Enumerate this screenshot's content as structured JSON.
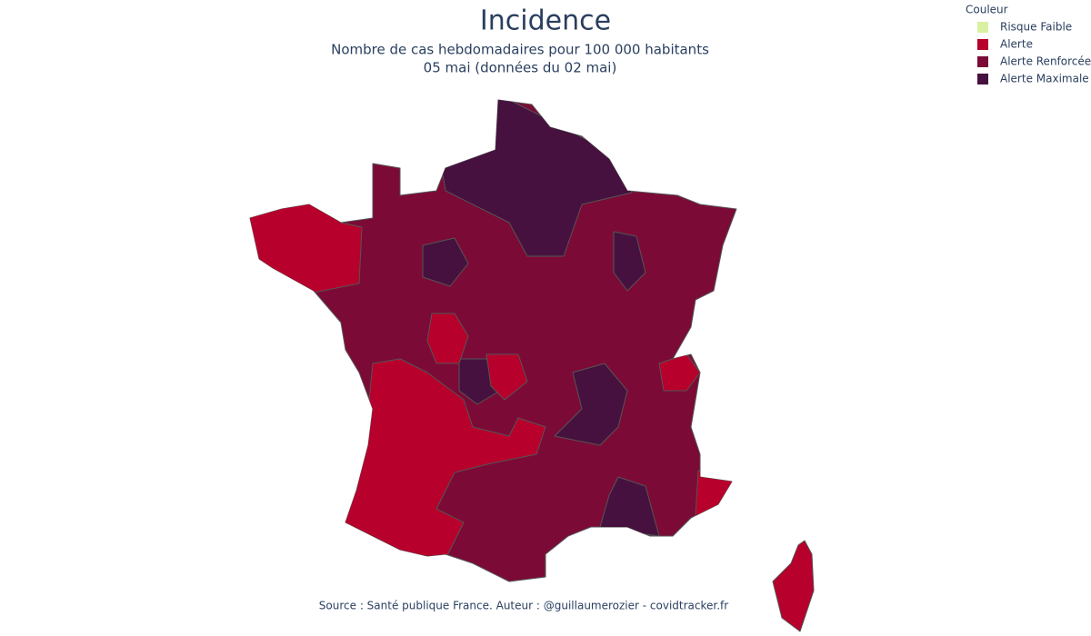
{
  "header": {
    "title": "Incidence",
    "subtitle_lines": [
      "Nombre de cas hebdomadaires pour 100 000 habitants",
      "05 mai (données du 02 mai)"
    ]
  },
  "legend": {
    "title": "Couleur",
    "items": [
      {
        "name": "Risque Faible",
        "color": "#d9f0a3"
      },
      {
        "name": "Alerte",
        "color": "#b7002b"
      },
      {
        "name": "Alerte Renforcée",
        "color": "#7c0a36"
      },
      {
        "name": "Alerte Maximale",
        "color": "#46113f"
      }
    ]
  },
  "footer": {
    "source": "Source : Santé publique France. Auteur : @guillaumerozier - covidtracker.fr"
  }
}
